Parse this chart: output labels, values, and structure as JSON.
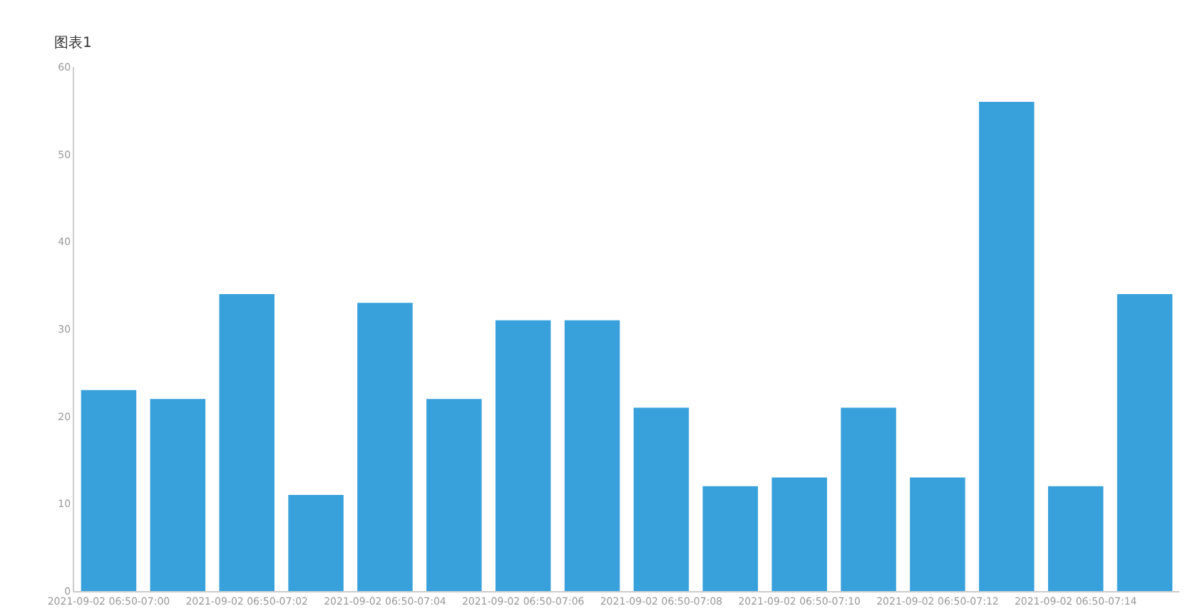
{
  "chart_data": {
    "type": "bar",
    "title": "图表1",
    "categories": [
      "2021-09-02 06:50-07:00",
      null,
      "2021-09-02 06:50-07:02",
      null,
      "2021-09-02 06:50-07:04",
      null,
      "2021-09-02 06:50-07:06",
      null,
      "2021-09-02 06:50-07:08",
      null,
      "2021-09-02 06:50-07:10",
      null,
      "2021-09-02 06:50-07:12",
      null,
      "2021-09-02 06:50-07:14",
      null
    ],
    "values": [
      23,
      22,
      34,
      11,
      33,
      22,
      31,
      31,
      21,
      12,
      13,
      21,
      13,
      56,
      12,
      34
    ],
    "color": "#38a1db",
    "ylim": [
      0,
      60
    ],
    "yticks": [
      0,
      10,
      20,
      30,
      40,
      50,
      60
    ]
  }
}
